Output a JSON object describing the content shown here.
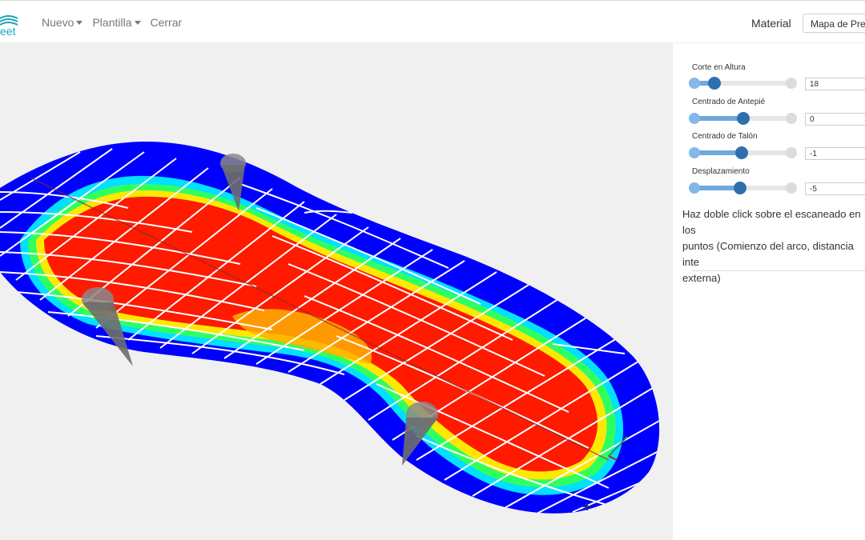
{
  "app": {
    "logo_text": "eet"
  },
  "menu": [
    {
      "label": "Nuevo",
      "dropdown": true
    },
    {
      "label": "Plantilla",
      "dropdown": true
    },
    {
      "label": "Cerrar",
      "dropdown": false
    }
  ],
  "material": {
    "label": "Material",
    "selected": "Mapa de Presiones"
  },
  "controls": [
    {
      "label": "Corte en Altura",
      "value": "18",
      "level": 0.2
    },
    {
      "label": "Centrado de Antepié",
      "value": "0",
      "level": 0.5
    },
    {
      "label": "Centrado de Talón",
      "value": "-1",
      "level": 0.49
    },
    {
      "label": "Desplazamiento",
      "value": "-5",
      "level": 0.47
    }
  ],
  "help": {
    "text": "Haz doble click sobre el escaneado en los\npuntos (Comienzo del arco, distancia inte\nexterna)"
  },
  "colors": {
    "accent": "#2f6fae",
    "heat_low": "#0000ff",
    "heat_high": "#ff0000",
    "viewer_bg": "#f0f0f0"
  },
  "icons": [
    "logo-wave-icon",
    "caret-down-icon",
    "axis-gizmo-icon"
  ]
}
